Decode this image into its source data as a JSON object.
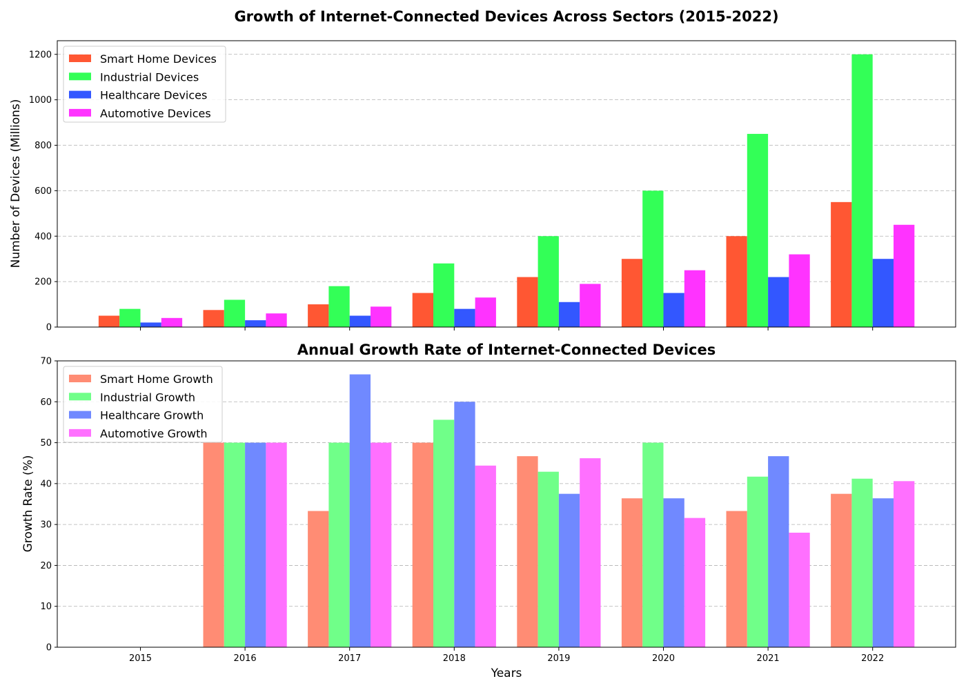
{
  "chart_data": [
    {
      "type": "bar",
      "title": "Growth of Internet-Connected Devices Across Sectors (2015-2022)",
      "xlabel": "",
      "ylabel": "Number of Devices (Millions)",
      "ylim": [
        0,
        1260
      ],
      "yticks": [
        0,
        200,
        400,
        600,
        800,
        1000,
        1200
      ],
      "grid": true,
      "legend_position": "top-left",
      "categories": [
        "2015",
        "2016",
        "2017",
        "2018",
        "2019",
        "2020",
        "2021",
        "2022"
      ],
      "series": [
        {
          "name": "Smart Home Devices",
          "color": "#ff5733",
          "values": [
            50,
            75,
            100,
            150,
            220,
            300,
            400,
            550
          ]
        },
        {
          "name": "Industrial Devices",
          "color": "#33ff57",
          "values": [
            80,
            120,
            180,
            280,
            400,
            600,
            850,
            1200
          ]
        },
        {
          "name": "Healthcare Devices",
          "color": "#3357ff",
          "values": [
            20,
            30,
            50,
            80,
            110,
            150,
            220,
            300
          ]
        },
        {
          "name": "Automotive Devices",
          "color": "#ff33ff",
          "values": [
            40,
            60,
            90,
            130,
            190,
            250,
            320,
            450
          ]
        }
      ]
    },
    {
      "type": "bar",
      "title": "Annual Growth Rate of Internet-Connected Devices",
      "xlabel": "Years",
      "ylabel": "Growth Rate (%)",
      "ylim": [
        0,
        70
      ],
      "yticks": [
        0,
        10,
        20,
        30,
        40,
        50,
        60,
        70
      ],
      "grid": true,
      "legend_position": "top-left",
      "categories": [
        "2015",
        "2016",
        "2017",
        "2018",
        "2019",
        "2020",
        "2021",
        "2022"
      ],
      "series": [
        {
          "name": "Smart Home Growth",
          "color": "#ff8c74",
          "values": [
            0,
            50.0,
            33.3,
            50.0,
            46.7,
            36.4,
            33.3,
            37.5
          ]
        },
        {
          "name": "Industrial Growth",
          "color": "#70ff89",
          "values": [
            0,
            50.0,
            50.0,
            55.6,
            42.9,
            50.0,
            41.7,
            41.2
          ]
        },
        {
          "name": "Healthcare Growth",
          "color": "#7089ff",
          "values": [
            0,
            50.0,
            66.7,
            60.0,
            37.5,
            36.4,
            46.7,
            36.4
          ]
        },
        {
          "name": "Automotive Growth",
          "color": "#ff70ff",
          "values": [
            0,
            50.0,
            50.0,
            44.4,
            46.2,
            31.6,
            28.0,
            40.6
          ]
        }
      ]
    }
  ]
}
